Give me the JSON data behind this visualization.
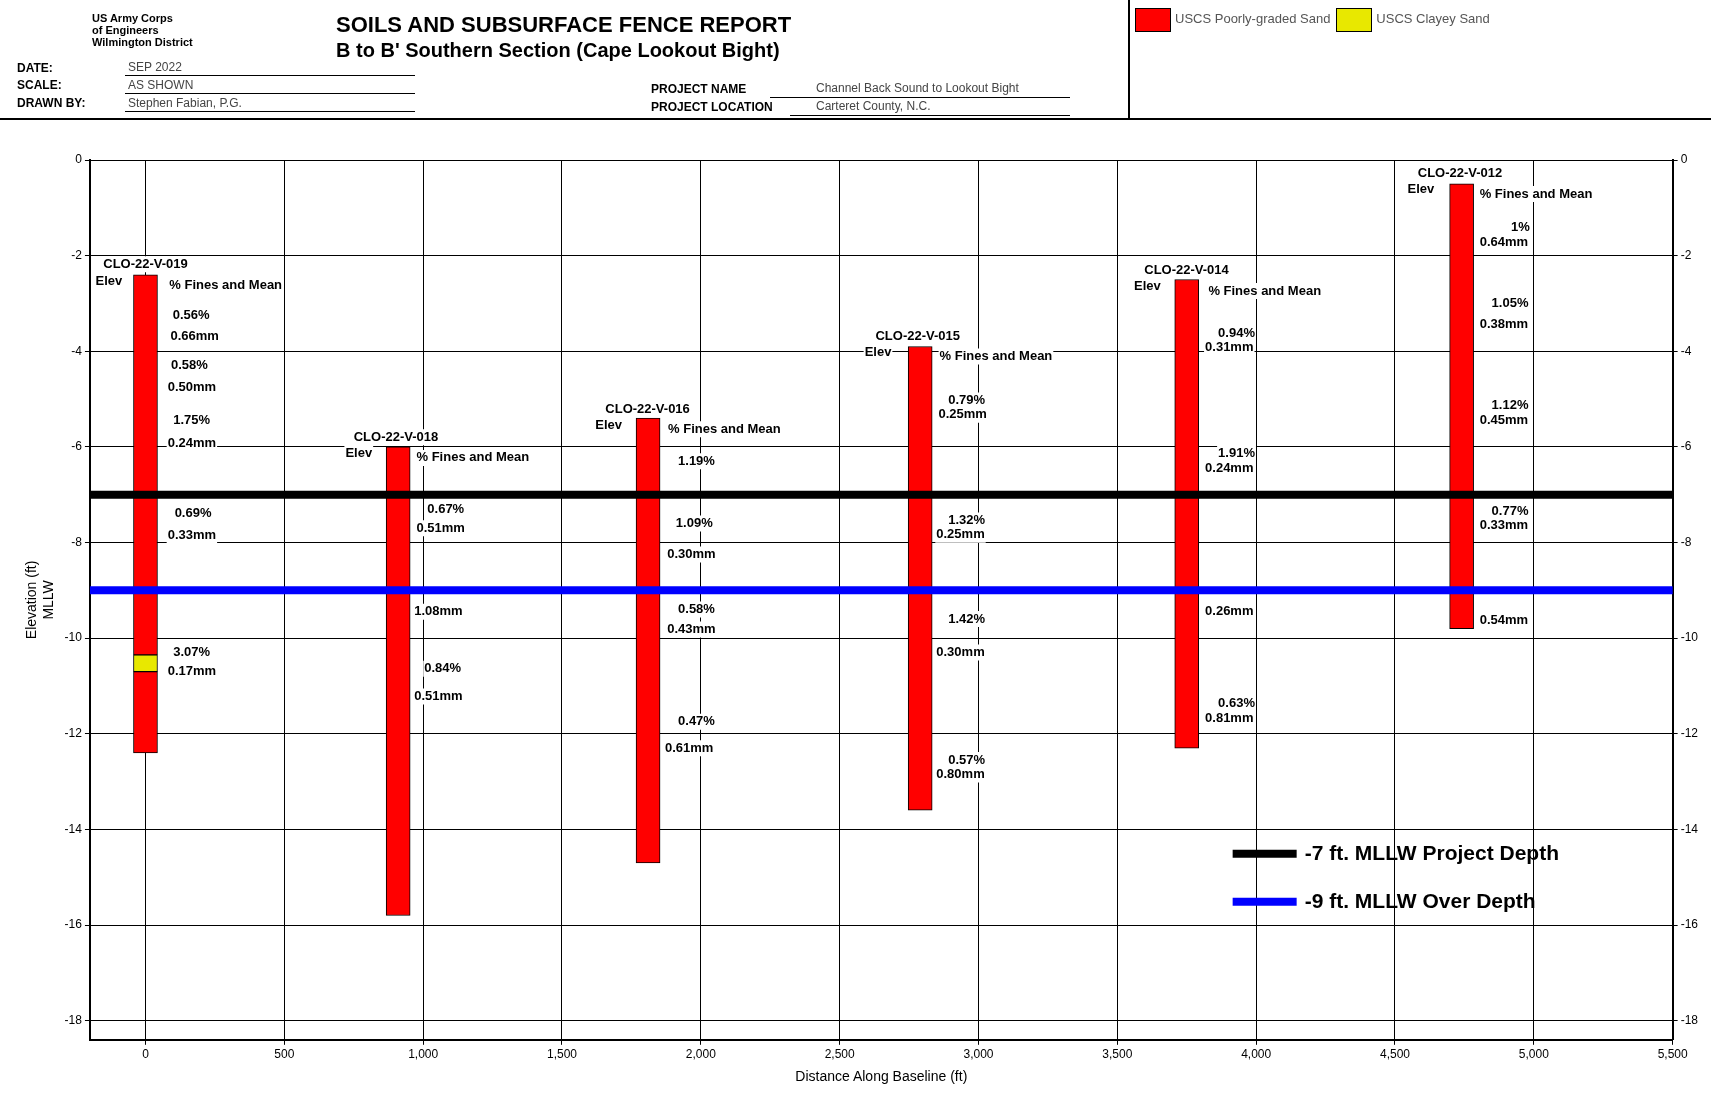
{
  "chart_data": {
    "type": "bar",
    "title": "SOILS AND SUBSURFACE FENCE REPORT",
    "subtitle": "B to B' Southern Section (Cape Lookout Bight)",
    "xlabel": "Distance Along Baseline (ft)",
    "ylabel": "Elevation (ft)\nMLLW",
    "xlim": [
      -200,
      5500
    ],
    "xticks": [
      0,
      500,
      {
        "value": 1000,
        "label": "1,000"
      },
      {
        "value": 1500,
        "label": "1,500"
      },
      {
        "value": 2000,
        "label": "2,000"
      },
      {
        "value": 2500,
        "label": "2,500"
      },
      {
        "value": 3000,
        "label": "3,000"
      },
      {
        "value": 3500,
        "label": "3,500"
      },
      {
        "value": 4000,
        "label": "4,000"
      },
      {
        "value": 4500,
        "label": "4,500"
      },
      {
        "value": 5000,
        "label": "5,000"
      },
      {
        "value": 5500,
        "label": "5,500"
      }
    ],
    "ylim": [
      -18.4,
      0
    ],
    "yticks": [
      0,
      -2,
      -4,
      -6,
      -8,
      -10,
      -12,
      -14,
      -16,
      -18
    ],
    "y2lim": [
      -18.4,
      0
    ],
    "y2ticks": [
      0,
      -2,
      -4,
      -6,
      -8,
      -10,
      -12,
      -14,
      -16,
      -18
    ],
    "grid": true,
    "legend": "top right",
    "series": [
      {
        "name": "USCS Poorly-graded Sand",
        "color": "#ff0000",
        "x": [
          0,
          910,
          1810,
          2790,
          3750,
          4740
        ],
        "base": [
          -10.35,
          -15.8,
          -14.7,
          -13.6,
          -12.3,
          -9.8
        ],
        "values": [
          7.95,
          9.8,
          9.3,
          9.7,
          9.8,
          9.3
        ]
      },
      {
        "name": "USCS Clayey Sand",
        "color": "#e8e800",
        "x": [
          0
        ],
        "base": [
          -10.7
        ],
        "values": [
          0.35
        ]
      },
      {
        "color": "#ff0000",
        "x": [
          0
        ],
        "base": [
          -12.4
        ],
        "values": [
          1.7
        ]
      }
    ],
    "ref_lines": [
      {
        "axis": "y",
        "value": -7,
        "label": "-7 ft. MLLW Project Depth",
        "color": "#000000"
      },
      {
        "axis": "y",
        "value": -9,
        "label": "-9 ft. MLLW Over Depth",
        "color": "#0000ff"
      }
    ],
    "annotations": [
      "US Army Corps",
      "of Engineers",
      "Wilmington District",
      "DATE:",
      "SEP 2022",
      "SCALE:",
      "AS SHOWN",
      "DRAWN BY:",
      "Stephen Fabian, P.G.",
      "PROJECT NAME",
      "Channel Back Sound to Lookout Bight",
      "PROJECT LOCATION",
      "Carteret County, N.C.",
      "CLO-22-V-019",
      "Elev",
      "% Fines and Mean",
      "0.56%",
      "0.66mm",
      "0.58%",
      "0.50mm",
      "1.75%",
      "0.24mm",
      "0.69%",
      "0.33mm",
      "3.07%",
      "0.17mm",
      "CLO-22-V-018",
      "Elev",
      "% Fines and Mean",
      "0.67%",
      "0.51mm",
      "1.08mm",
      "0.84%",
      "0.51mm",
      "CLO-22-V-016",
      "Elev",
      "% Fines and Mean",
      "1.19%",
      "1.09%",
      "0.30mm",
      "0.58%",
      "0.43mm",
      "0.47%",
      "0.61mm",
      "CLO-22-V-015",
      "Elev",
      "% Fines and Mean",
      "0.79%",
      "0.25mm",
      "1.32%",
      "0.25mm",
      "1.42%",
      "0.30mm",
      "0.57%",
      "0.80mm",
      "CLO-22-V-014",
      "Elev",
      "% Fines and Mean",
      "0.94%",
      "0.31mm",
      "1.91%",
      "0.24mm",
      "0.26mm",
      "0.63%",
      "0.81mm",
      "CLO-22-V-012",
      "Elev",
      "% Fines and Mean",
      "1%",
      "0.64mm",
      "1.05%",
      "0.38mm",
      "1.12%",
      "0.45mm",
      "0.77%",
      "0.33mm",
      "0.54mm"
    ]
  }
}
